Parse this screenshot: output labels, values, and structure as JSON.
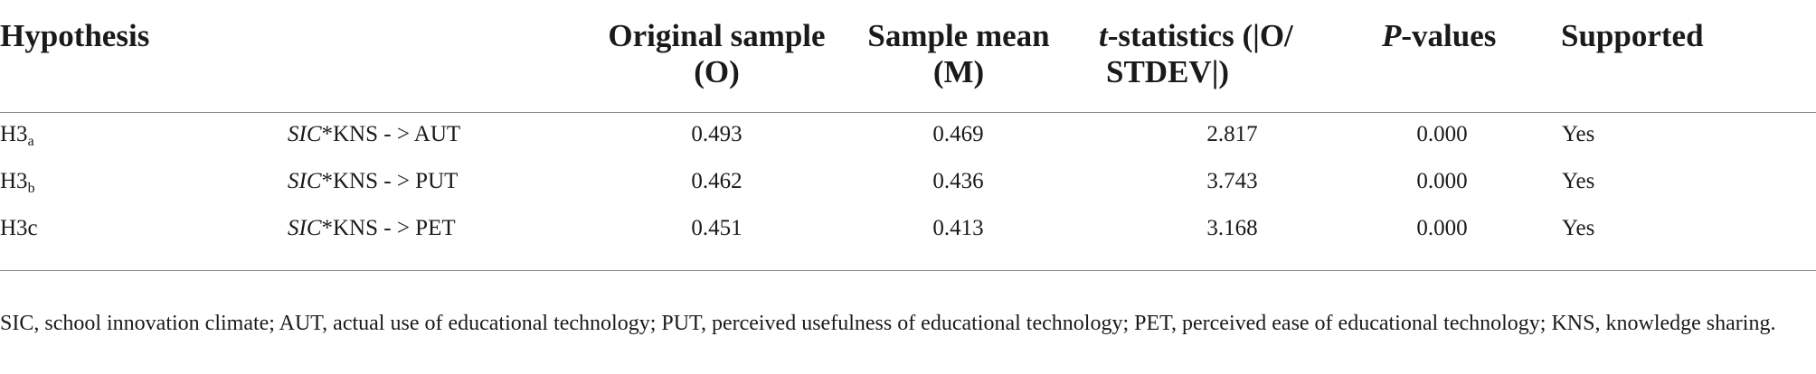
{
  "table": {
    "headers": {
      "hypothesis": "Hypothesis",
      "original_sample_line1": "Original sample",
      "original_sample_line2": "(O)",
      "sample_mean_line1": "Sample mean",
      "sample_mean_line2": "(M)",
      "t_stat_italic": "t",
      "t_stat_line1_rest": "-statistics (|O/",
      "t_stat_line2": "STDEV|)",
      "p_italic": "P",
      "p_rest": "-values",
      "supported": "Supported"
    },
    "rows": [
      {
        "hyp_main": "H3",
        "hyp_sub": "a",
        "path_italic": "SIC",
        "path_rest": "*KNS - > AUT",
        "original": "0.493",
        "mean": "0.469",
        "t": "2.817",
        "p": "0.000",
        "supported": "Yes"
      },
      {
        "hyp_main": "H3",
        "hyp_sub": "b",
        "path_italic": "SIC",
        "path_rest": "*KNS - > PUT",
        "original": "0.462",
        "mean": "0.436",
        "t": "3.743",
        "p": "0.000",
        "supported": "Yes"
      },
      {
        "hyp_main": "H3c",
        "hyp_sub": "",
        "path_italic": "SIC",
        "path_rest": "*KNS - > PET",
        "original": "0.451",
        "mean": "0.413",
        "t": "3.168",
        "p": "0.000",
        "supported": "Yes"
      }
    ],
    "footnote": "SIC, school innovation climate; AUT, actual use of educational technology; PUT, perceived usefulness of educational technology; PET, perceived ease of educational technology; KNS, knowledge sharing."
  }
}
